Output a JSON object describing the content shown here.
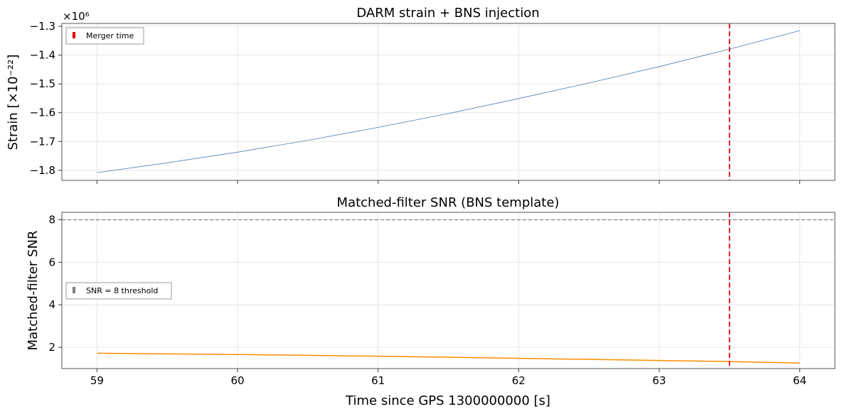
{
  "chart_data": [
    {
      "type": "line",
      "title": "DARM strain + BNS injection",
      "ylabel": "Strain [×10⁻²²]",
      "offset_text": "×10⁶",
      "xlim": [
        58.75,
        64.25
      ],
      "ylim": [
        -1.835,
        -1.29
      ],
      "xticks": [
        59,
        60,
        61,
        62,
        63,
        64
      ],
      "yticks": [
        -1.8,
        -1.7,
        -1.6,
        -1.5,
        -1.4,
        -1.3
      ],
      "ytick_labels": [
        "−1.8",
        "−1.7",
        "−1.6",
        "−1.5",
        "−1.4",
        "−1.3"
      ],
      "grid": true,
      "series": [
        {
          "name": "",
          "color": "#4a7fb5",
          "x": [
            59.0,
            59.5,
            60.0,
            60.5,
            61.0,
            61.5,
            62.0,
            62.5,
            63.0,
            63.5,
            64.0
          ],
          "y": [
            -1.808,
            -1.774,
            -1.737,
            -1.696,
            -1.651,
            -1.603,
            -1.551,
            -1.497,
            -1.44,
            -1.379,
            -1.315
          ]
        }
      ],
      "vlines": [
        {
          "x": 63.5,
          "color": "#e00000",
          "label": "Merger time"
        }
      ],
      "legend": {
        "placement": "top-left",
        "entries": [
          {
            "label": "Merger time",
            "color": "#e00000"
          }
        ]
      }
    },
    {
      "type": "line",
      "title": "Matched-filter SNR (BNS template)",
      "ylabel": "Matched-filter SNR",
      "xlabel": "Time since GPS 1300000000 [s]",
      "xlim": [
        58.75,
        64.25
      ],
      "ylim": [
        1.0,
        8.35
      ],
      "xticks": [
        59,
        60,
        61,
        62,
        63,
        64
      ],
      "yticks": [
        2,
        4,
        6,
        8
      ],
      "grid": true,
      "series": [
        {
          "name": "",
          "color": "#ff8c00",
          "x": [
            59.0,
            60.0,
            61.0,
            62.0,
            63.0,
            63.5,
            64.0
          ],
          "y": [
            1.72,
            1.66,
            1.58,
            1.48,
            1.38,
            1.33,
            1.26
          ]
        }
      ],
      "hlines": [
        {
          "y": 8,
          "color": "#808080",
          "label": "SNR = 8 threshold"
        }
      ],
      "vlines": [
        {
          "x": 63.5,
          "color": "#e00000"
        }
      ],
      "legend": {
        "placement": "center-left",
        "entries": [
          {
            "label": "SNR = 8 threshold",
            "color": "#808080"
          }
        ]
      }
    }
  ]
}
